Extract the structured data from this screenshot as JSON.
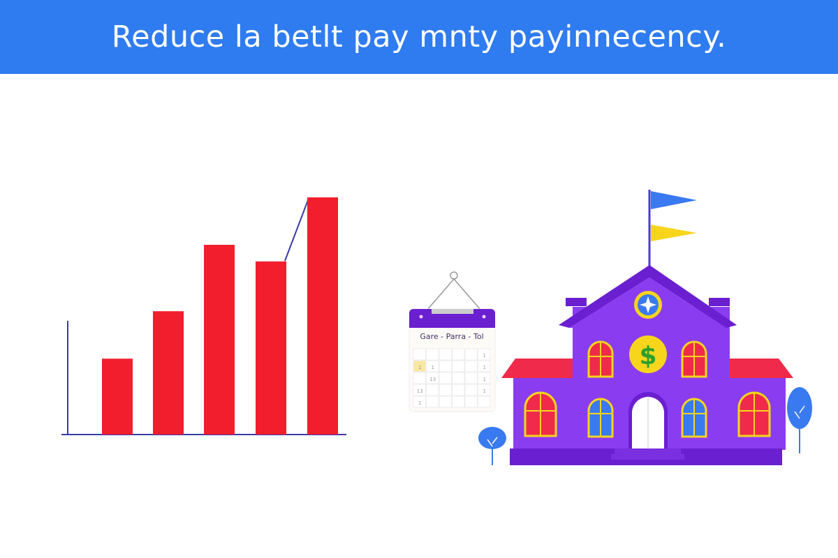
{
  "header": {
    "title": "Reduce la betlt pay mnty payinnecency."
  },
  "colors": {
    "banner": "#2f7bf0",
    "bars": "#f21d2d",
    "axis": "#3a3aa8",
    "building": "#8a3df0",
    "roof": "#f02a4a",
    "calendar_header": "#6a1fd0",
    "coin": "#f7d51d",
    "flag_top": "#3a7af0",
    "flag_bottom": "#f7d51d"
  },
  "bar_graphic": {
    "relative_heights_percent": [
      32,
      52,
      80,
      73,
      100
    ],
    "trend_line": true
  },
  "calendar": {
    "header": "Gare - Parra - Tol",
    "cells": [
      "1",
      "1",
      "1",
      "1",
      "13",
      "1",
      "13",
      "1",
      "1"
    ]
  },
  "icons": [
    "bar-chart-icon",
    "calendar-icon",
    "school-building-icon",
    "dollar-icon",
    "flag-icon",
    "tree-icon"
  ]
}
